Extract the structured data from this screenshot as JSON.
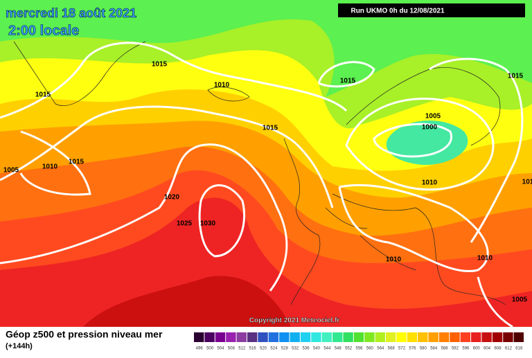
{
  "header": {
    "title": "mercredi 18 août 2021",
    "time": "2:00 locale",
    "run": "Run UKMO 0h du 12/08/2021"
  },
  "copyright": "Copyright 2021 Meteociel.fr",
  "footer": {
    "title": "Géop z500 et pression niveau mer",
    "lead": "(+144h)"
  },
  "legend": {
    "labels": [
      496,
      500,
      504,
      508,
      512,
      516,
      520,
      524,
      528,
      532,
      536,
      540,
      544,
      548,
      552,
      556,
      560,
      564,
      568,
      572,
      576,
      580,
      584,
      588,
      592,
      596,
      600,
      604,
      608,
      612,
      616
    ]
  },
  "isobars": {
    "labels": [
      "1015",
      "1015",
      "1010",
      "1015",
      "1015",
      "1005",
      "1000",
      "1015",
      "1005",
      "1010",
      "1015",
      "1010",
      "1020",
      "1025",
      "1030",
      "1010",
      "1010",
      "1005",
      "101"
    ]
  }
}
